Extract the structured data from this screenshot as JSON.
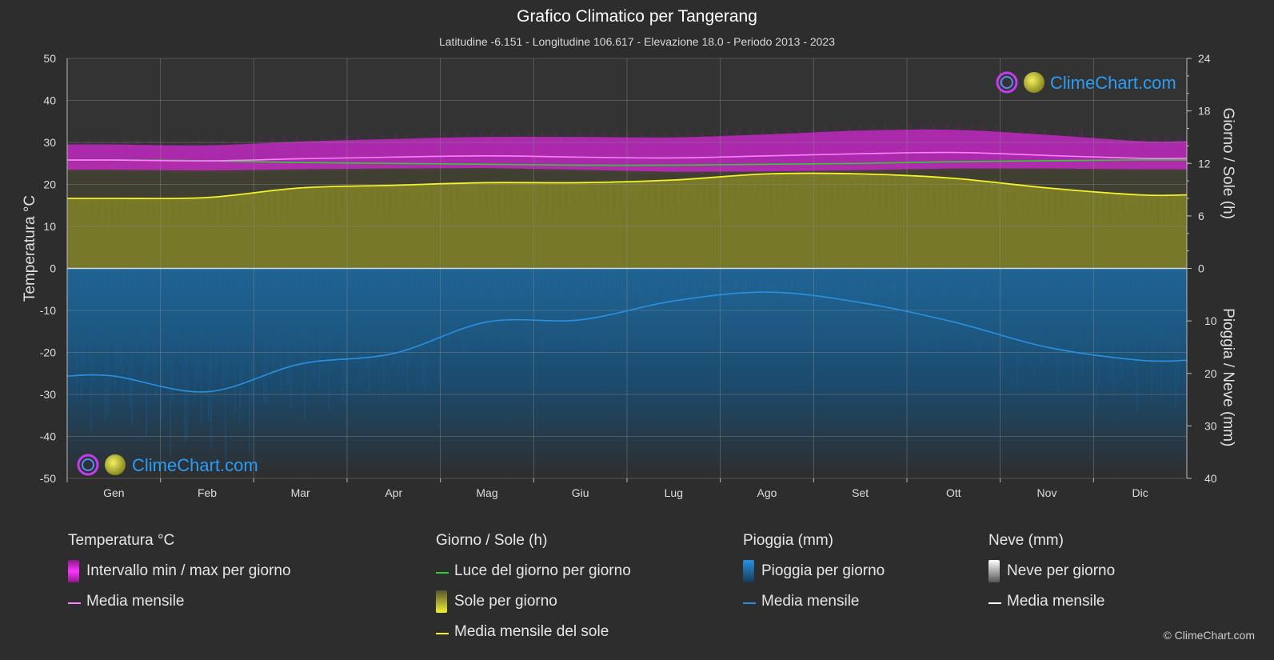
{
  "title": "Grafico Climatico per Tangerang",
  "subtitle": "Latitudine -6.151 - Longitudine 106.617 - Elevazione 18.0 - Periodo 2013 - 2023",
  "logo_text": "ClimeChart.com",
  "copyright": "© ClimeChart.com",
  "colors": {
    "background": "#2d2d2d",
    "temp_range": "#d62ad6",
    "temp_mean": "#ff7fff",
    "daylight": "#33cc33",
    "sun_fill": "#b5b52a",
    "sun_mean": "#f2f22e",
    "rain_fill": "#1d6fa8",
    "rain_mean": "#2a90e0",
    "snow_mean": "#ffffff",
    "logo_blue": "#2a9df4"
  },
  "chart_data": {
    "type": "area",
    "months": [
      "Gen",
      "Feb",
      "Mar",
      "Apr",
      "Mag",
      "Giu",
      "Lug",
      "Ago",
      "Set",
      "Ott",
      "Nov",
      "Dic"
    ],
    "left_axis": {
      "label": "Temperatura °C",
      "min": -50,
      "max": 50,
      "ticks": [
        50,
        40,
        30,
        20,
        10,
        0,
        -10,
        -20,
        -30,
        -40,
        -50
      ]
    },
    "right_axis_top": {
      "label": "Giorno / Sole (h)",
      "min": 0,
      "max": 24,
      "ticks": [
        24,
        18,
        12,
        6,
        0
      ]
    },
    "right_axis_bottom": {
      "label": "Pioggia / Neve (mm)",
      "min": 0,
      "max": 40,
      "ticks": [
        0,
        10,
        20,
        30,
        40
      ]
    },
    "series": [
      {
        "name": "Temperatura media mensile",
        "unit": "°C",
        "values": [
          25.8,
          25.6,
          26.1,
          26.5,
          26.8,
          26.5,
          26.3,
          26.8,
          27.3,
          27.6,
          26.9,
          26.2
        ]
      },
      {
        "name": "Temperatura minima",
        "unit": "°C",
        "values": [
          23.5,
          23.3,
          23.6,
          23.8,
          23.9,
          23.5,
          23.0,
          23.1,
          23.4,
          23.8,
          23.8,
          23.6
        ]
      },
      {
        "name": "Temperatura massima",
        "unit": "°C",
        "values": [
          29.5,
          29.3,
          30.2,
          30.8,
          31.3,
          31.3,
          31.2,
          31.9,
          32.8,
          33.0,
          31.8,
          30.3
        ]
      },
      {
        "name": "Luce del giorno",
        "unit": "h",
        "values": [
          12.4,
          12.3,
          12.1,
          12.0,
          11.9,
          11.8,
          11.8,
          11.9,
          12.0,
          12.2,
          12.3,
          12.4
        ]
      },
      {
        "name": "Media mensile del sole",
        "unit": "h",
        "values": [
          8.0,
          8.1,
          9.2,
          9.5,
          9.8,
          9.8,
          10.1,
          10.8,
          10.8,
          10.3,
          9.2,
          8.4
        ]
      },
      {
        "name": "Pioggia media mensile",
        "unit": "mm",
        "values": [
          20.5,
          23.5,
          18.2,
          16.2,
          10.2,
          9.8,
          6.2,
          4.5,
          6.5,
          10.2,
          15.0,
          17.5
        ]
      }
    ],
    "grid": true
  },
  "legend": {
    "groups": [
      {
        "title": "Temperatura °C",
        "items": [
          "Intervallo min / max per giorno",
          "Media mensile"
        ]
      },
      {
        "title": "Giorno / Sole (h)",
        "items": [
          "Luce del giorno per giorno",
          "Sole per giorno",
          "Media mensile del sole"
        ]
      },
      {
        "title": "Pioggia (mm)",
        "items": [
          "Pioggia per giorno",
          "Media mensile"
        ]
      },
      {
        "title": "Neve (mm)",
        "items": [
          "Neve per giorno",
          "Media mensile"
        ]
      }
    ]
  }
}
